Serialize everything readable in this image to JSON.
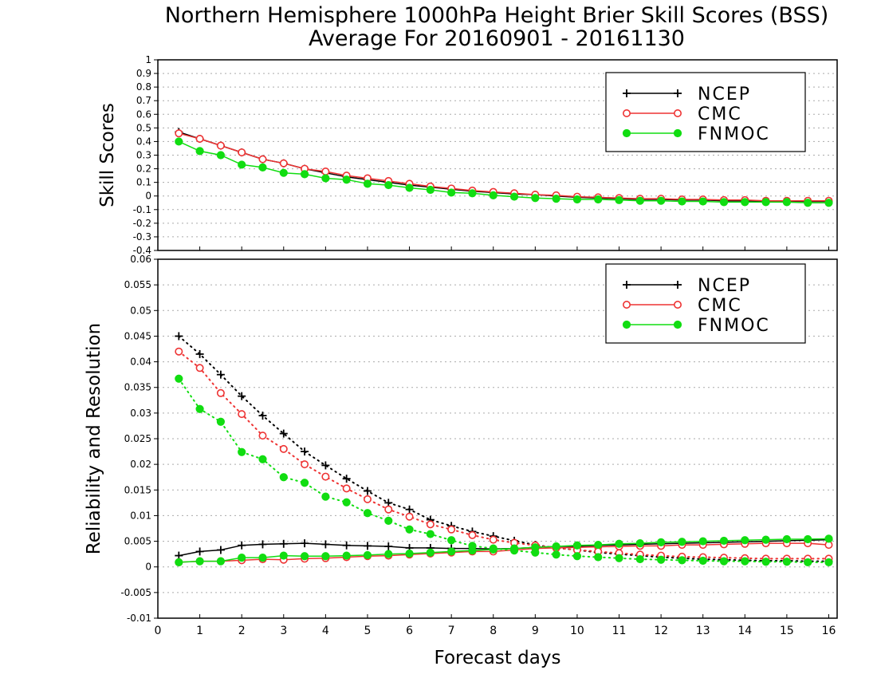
{
  "title_line1": "Northern Hemisphere 1000hPa Height Brier Skill Scores (BSS)",
  "title_line2": "Average For 20160901 - 20161130",
  "xlabel": "Forecast days",
  "colors": {
    "NCEP": "#000000",
    "CMC": "#ee3333",
    "FNMOC": "#11dd11"
  },
  "markers": {
    "NCEP": "plus",
    "CMC": "open-circle",
    "FNMOC": "filled-circle"
  },
  "chart_data": [
    {
      "type": "line",
      "ylabel": "Skill Scores",
      "xlim": [
        0,
        16.2
      ],
      "ylim": [
        -0.4,
        1
      ],
      "xticks": [
        "0",
        "1",
        "2",
        "3",
        "4",
        "5",
        "6",
        "7",
        "8",
        "9",
        "10",
        "11",
        "12",
        "13",
        "14",
        "15",
        "16"
      ],
      "yticks": [
        "-0.4",
        "-0.3",
        "-0.2",
        "-0.1",
        "0",
        "0.1",
        "0.2",
        "0.3",
        "0.4",
        "0.5",
        "0.6",
        "0.7",
        "0.8",
        "0.9",
        "1"
      ],
      "grid": true,
      "legend_position": "top-right",
      "legend": [
        "NCEP",
        "CMC",
        "FNMOC"
      ],
      "x": [
        0.5,
        1,
        1.5,
        2,
        2.5,
        3,
        3.5,
        4,
        4.5,
        5,
        5.5,
        6,
        6.5,
        7,
        7.5,
        8,
        8.5,
        9,
        9.5,
        10,
        10.5,
        11,
        11.5,
        12,
        12.5,
        13,
        13.5,
        14,
        14.5,
        15,
        15.5,
        16
      ],
      "series": [
        {
          "name": "NCEP",
          "style": "solid",
          "values": [
            0.47,
            0.42,
            0.37,
            0.32,
            0.27,
            0.24,
            0.2,
            0.17,
            0.14,
            0.12,
            0.1,
            0.08,
            0.065,
            0.05,
            0.035,
            0.025,
            0.015,
            0.01,
            0.0,
            -0.01,
            -0.015,
            -0.02,
            -0.025,
            -0.025,
            -0.03,
            -0.03,
            -0.035,
            -0.035,
            -0.04,
            -0.04,
            -0.04,
            -0.04
          ]
        },
        {
          "name": "CMC",
          "style": "solid",
          "values": [
            0.46,
            0.42,
            0.37,
            0.32,
            0.27,
            0.24,
            0.2,
            0.18,
            0.15,
            0.13,
            0.11,
            0.09,
            0.07,
            0.055,
            0.04,
            0.03,
            0.02,
            0.01,
            0.005,
            -0.005,
            -0.01,
            -0.015,
            -0.02,
            -0.02,
            -0.025,
            -0.025,
            -0.03,
            -0.03,
            -0.035,
            -0.035,
            -0.035,
            -0.035
          ]
        },
        {
          "name": "FNMOC",
          "style": "solid",
          "values": [
            0.4,
            0.33,
            0.3,
            0.23,
            0.21,
            0.17,
            0.16,
            0.13,
            0.12,
            0.09,
            0.08,
            0.06,
            0.045,
            0.025,
            0.02,
            0.005,
            -0.005,
            -0.015,
            -0.02,
            -0.025,
            -0.025,
            -0.03,
            -0.035,
            -0.035,
            -0.04,
            -0.04,
            -0.045,
            -0.045,
            -0.045,
            -0.045,
            -0.05,
            -0.05
          ]
        }
      ]
    },
    {
      "type": "line",
      "ylabel": "Reliability and Resolution",
      "xlim": [
        0,
        16.2
      ],
      "ylim": [
        -0.01,
        0.06
      ],
      "xticks": [
        "0",
        "1",
        "2",
        "3",
        "4",
        "5",
        "6",
        "7",
        "8",
        "9",
        "10",
        "11",
        "12",
        "13",
        "14",
        "15",
        "16"
      ],
      "yticks": [
        "-0.01",
        "-0.005",
        "0",
        "0.005",
        "0.01",
        "0.015",
        "0.02",
        "0.025",
        "0.03",
        "0.035",
        "0.04",
        "0.045",
        "0.05",
        "0.055",
        "0.06"
      ],
      "grid": true,
      "legend_position": "top-right",
      "legend": [
        "NCEP",
        "CMC",
        "FNMOC"
      ],
      "x": [
        0.5,
        1,
        1.5,
        2,
        2.5,
        3,
        3.5,
        4,
        4.5,
        5,
        5.5,
        6,
        6.5,
        7,
        7.5,
        8,
        8.5,
        9,
        9.5,
        10,
        10.5,
        11,
        11.5,
        12,
        12.5,
        13,
        13.5,
        14,
        14.5,
        15,
        15.5,
        16
      ],
      "series": [
        {
          "name": "NCEP",
          "style": "solid",
          "values": [
            0.0022,
            0.003,
            0.0033,
            0.0042,
            0.0044,
            0.0045,
            0.0046,
            0.0044,
            0.0042,
            0.0041,
            0.004,
            0.0037,
            0.0037,
            0.0036,
            0.0036,
            0.0035,
            0.0036,
            0.0038,
            0.004,
            0.004,
            0.0042,
            0.0043,
            0.0044,
            0.0045,
            0.0046,
            0.0047,
            0.0048,
            0.0049,
            0.005,
            0.0051,
            0.0052,
            0.0053
          ]
        },
        {
          "name": "NCEP",
          "style": "dotted",
          "values": [
            0.045,
            0.0415,
            0.0375,
            0.0333,
            0.0295,
            0.026,
            0.0225,
            0.0198,
            0.0172,
            0.0148,
            0.0125,
            0.0112,
            0.0092,
            0.008,
            0.0069,
            0.006,
            0.0051,
            0.0043,
            0.0037,
            0.0033,
            0.0028,
            0.0025,
            0.0022,
            0.0019,
            0.0017,
            0.0015,
            0.0014,
            0.0013,
            0.0012,
            0.0012,
            0.0011,
            0.0011
          ]
        },
        {
          "name": "CMC",
          "style": "solid",
          "values": [
            0.0009,
            0.0011,
            0.0011,
            0.0013,
            0.0015,
            0.0014,
            0.0016,
            0.0017,
            0.0019,
            0.0021,
            0.0022,
            0.0024,
            0.0026,
            0.0028,
            0.003,
            0.003,
            0.0033,
            0.0036,
            0.0037,
            0.0038,
            0.0039,
            0.004,
            0.0041,
            0.0041,
            0.0043,
            0.0043,
            0.0044,
            0.0045,
            0.0046,
            0.0046,
            0.0046,
            0.0043
          ]
        },
        {
          "name": "CMC",
          "style": "dotted",
          "values": [
            0.042,
            0.0388,
            0.0339,
            0.0298,
            0.0256,
            0.023,
            0.02,
            0.0176,
            0.0153,
            0.0132,
            0.0112,
            0.0098,
            0.0083,
            0.0073,
            0.0062,
            0.0053,
            0.0047,
            0.0042,
            0.0037,
            0.0033,
            0.003,
            0.0027,
            0.0024,
            0.0022,
            0.002,
            0.0019,
            0.0018,
            0.0017,
            0.0016,
            0.0016,
            0.0016,
            0.0016
          ]
        },
        {
          "name": "FNMOC",
          "style": "solid",
          "values": [
            0.0009,
            0.0011,
            0.0011,
            0.0018,
            0.0018,
            0.0022,
            0.0021,
            0.0021,
            0.0022,
            0.0023,
            0.0025,
            0.0026,
            0.0028,
            0.003,
            0.0032,
            0.0034,
            0.0036,
            0.0038,
            0.004,
            0.0042,
            0.0043,
            0.0045,
            0.0046,
            0.0048,
            0.0049,
            0.005,
            0.0051,
            0.0052,
            0.0053,
            0.0054,
            0.0054,
            0.0055
          ]
        },
        {
          "name": "FNMOC",
          "style": "dotted",
          "values": [
            0.0367,
            0.0308,
            0.0283,
            0.0224,
            0.021,
            0.0175,
            0.0164,
            0.0137,
            0.0126,
            0.0105,
            0.009,
            0.0073,
            0.0064,
            0.0052,
            0.0041,
            0.0036,
            0.0032,
            0.0028,
            0.0024,
            0.0021,
            0.0019,
            0.0017,
            0.0015,
            0.0014,
            0.0013,
            0.0012,
            0.0011,
            0.0011,
            0.001,
            0.001,
            0.0009,
            0.0009
          ]
        }
      ]
    }
  ]
}
